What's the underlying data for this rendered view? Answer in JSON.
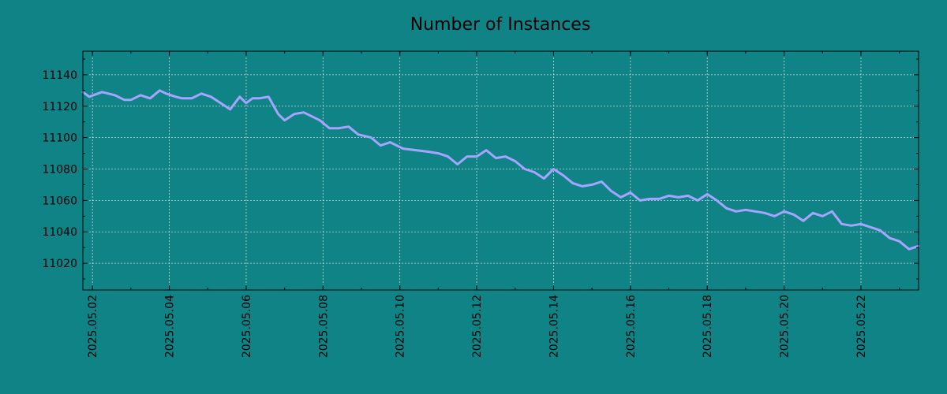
{
  "chart_data": {
    "type": "line",
    "title": "Number of Instances",
    "xlabel": "",
    "ylabel": "",
    "x_axis_type": "date",
    "xlim": [
      "2025-05-01 18:00",
      "2025-05-23 12:00"
    ],
    "ylim": [
      11003,
      11155
    ],
    "grid": true,
    "legend": "none",
    "x_ticks": [
      "2025.05.02",
      "2025.05.04",
      "2025.05.06",
      "2025.05.08",
      "2025.05.10",
      "2025.05.12",
      "2025.05.14",
      "2025.05.16",
      "2025.05.18",
      "2025.05.20",
      "2025.05.22"
    ],
    "y_ticks": [
      11020,
      11040,
      11060,
      11080,
      11100,
      11120,
      11140
    ],
    "colors": {
      "background": "#108386",
      "line": "#a5a5ff",
      "grid": "#c8d6d6",
      "axis": "#000000"
    },
    "series": [
      {
        "x": [
          "2025-05-01 18:00",
          "2025-05-01 22:00",
          "2025-05-02 06:00",
          "2025-05-02 14:00",
          "2025-05-02 20:00",
          "2025-05-03 00:00",
          "2025-05-03 06:00",
          "2025-05-03 12:00",
          "2025-05-03 18:00",
          "2025-05-03 22:00",
          "2025-05-04 04:00",
          "2025-05-04 08:00",
          "2025-05-04 14:00",
          "2025-05-04 20:00",
          "2025-05-05 02:00",
          "2025-05-05 08:00",
          "2025-05-05 14:00",
          "2025-05-05 20:00",
          "2025-05-06 00:00",
          "2025-05-06 04:00",
          "2025-05-06 08:00",
          "2025-05-06 14:00",
          "2025-05-06 20:00",
          "2025-05-07 00:00",
          "2025-05-07 06:00",
          "2025-05-07 12:00",
          "2025-05-07 18:00",
          "2025-05-07 22:00",
          "2025-05-08 04:00",
          "2025-05-08 10:00",
          "2025-05-08 16:00",
          "2025-05-08 22:00",
          "2025-05-09 06:00",
          "2025-05-09 12:00",
          "2025-05-09 18:00",
          "2025-05-10 02:00",
          "2025-05-10 10:00",
          "2025-05-10 18:00",
          "2025-05-11 00:00",
          "2025-05-11 06:00",
          "2025-05-11 12:00",
          "2025-05-11 18:00",
          "2025-05-12 00:00",
          "2025-05-12 06:00",
          "2025-05-12 12:00",
          "2025-05-12 18:00",
          "2025-05-13 00:00",
          "2025-05-13 06:00",
          "2025-05-13 12:00",
          "2025-05-13 18:00",
          "2025-05-14 00:00",
          "2025-05-14 06:00",
          "2025-05-14 12:00",
          "2025-05-14 18:00",
          "2025-05-15 00:00",
          "2025-05-15 06:00",
          "2025-05-15 12:00",
          "2025-05-15 18:00",
          "2025-05-16 00:00",
          "2025-05-16 06:00",
          "2025-05-16 12:00",
          "2025-05-16 18:00",
          "2025-05-17 00:00",
          "2025-05-17 06:00",
          "2025-05-17 12:00",
          "2025-05-17 18:00",
          "2025-05-18 00:00",
          "2025-05-18 06:00",
          "2025-05-18 12:00",
          "2025-05-18 18:00",
          "2025-05-19 00:00",
          "2025-05-19 06:00",
          "2025-05-19 12:00",
          "2025-05-19 18:00",
          "2025-05-20 00:00",
          "2025-05-20 06:00",
          "2025-05-20 12:00",
          "2025-05-20 18:00",
          "2025-05-21 00:00",
          "2025-05-21 06:00",
          "2025-05-21 12:00",
          "2025-05-21 18:00",
          "2025-05-22 00:00",
          "2025-05-22 06:00",
          "2025-05-22 12:00",
          "2025-05-22 18:00",
          "2025-05-23 00:00",
          "2025-05-23 06:00",
          "2025-05-23 12:00"
        ],
        "y": [
          11129,
          11126,
          11129,
          11127,
          11124,
          11124,
          11127,
          11125,
          11130,
          11128,
          11126,
          11125,
          11125,
          11128,
          11126,
          11122,
          11118,
          11126,
          11122,
          11125,
          11125,
          11126,
          11115,
          11111,
          11115,
          11116,
          11113,
          11111,
          11106,
          11106,
          11107,
          11102,
          11100,
          11095,
          11097,
          11093,
          11092,
          11091,
          11090,
          11088,
          11083,
          11088,
          11088,
          11092,
          11087,
          11088,
          11085,
          11080,
          11078,
          11074,
          11080,
          11076,
          11071,
          11069,
          11070,
          11072,
          11066,
          11062,
          11065,
          11060,
          11061,
          11061,
          11063,
          11062,
          11063,
          11060,
          11064,
          11060,
          11055,
          11053,
          11054,
          11053,
          11052,
          11050,
          11053,
          11051,
          11047,
          11052,
          11050,
          11053,
          11045,
          11044,
          11045,
          11043,
          11041,
          11036,
          11034,
          11029,
          11031
        ]
      }
    ]
  }
}
